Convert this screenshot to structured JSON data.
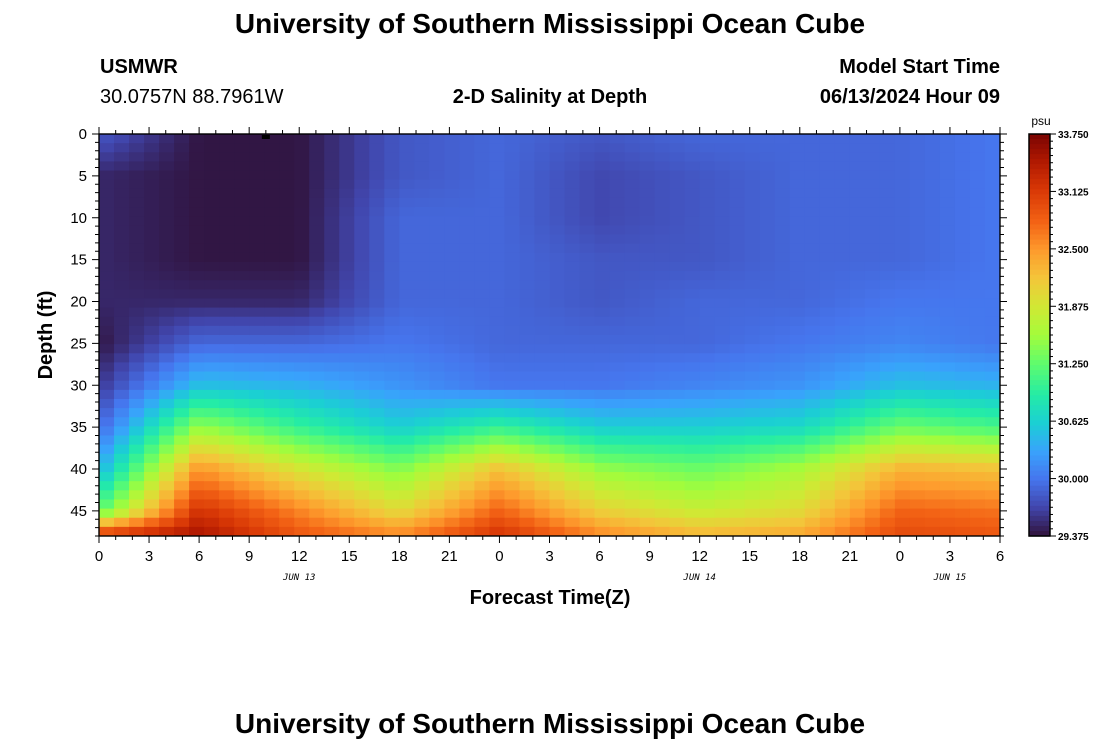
{
  "page": {
    "title": "University of Southern Mississippi Ocean Cube",
    "footer_title": "University of Southern Mississippi Ocean Cube",
    "station": "USMWR",
    "coordinates": "30.0757N  88.7961W",
    "subtitle": "2-D Salinity at Depth",
    "model_label": "Model Start Time",
    "model_time": "06/13/2024 Hour 09"
  },
  "chart_data": {
    "type": "heatmap",
    "title": "2-D Salinity at Depth",
    "xlabel": "Forecast Time(Z)",
    "ylabel": "Depth (ft)",
    "colorbar_unit": "psu",
    "xlim": [
      0,
      54
    ],
    "ylim": [
      0,
      48
    ],
    "y_inverted": true,
    "x_ticks": [
      0,
      3,
      6,
      9,
      12,
      15,
      18,
      21,
      24,
      27,
      30,
      33,
      36,
      39,
      42,
      45,
      48,
      51,
      54
    ],
    "x_tick_labels": [
      "0",
      "3",
      "6",
      "9",
      "12",
      "15",
      "18",
      "21",
      "0",
      "3",
      "6",
      "9",
      "12",
      "15",
      "18",
      "21",
      "0",
      "3",
      "6"
    ],
    "date_labels": [
      {
        "x": 12,
        "label": "JUN 13"
      },
      {
        "x": 36,
        "label": "JUN 14"
      },
      {
        "x": 51,
        "label": "JUN 15"
      }
    ],
    "y_ticks": [
      0,
      5,
      10,
      15,
      20,
      25,
      30,
      35,
      40,
      45
    ],
    "y_tick_labels": [
      "0",
      "5",
      "10",
      "15",
      "20",
      "25",
      "30",
      "35",
      "40",
      "45"
    ],
    "colorbar_range": [
      29.375,
      33.75
    ],
    "colorbar_ticks": [
      "33.750",
      "33.125",
      "32.500",
      "31.875",
      "31.250",
      "30.625",
      "30.000",
      "29.375"
    ],
    "colorbar_tick_values": [
      33.75,
      33.125,
      32.5,
      31.875,
      31.25,
      30.625,
      30.0,
      29.375
    ],
    "grid": false,
    "columns_x": [
      0,
      6,
      12,
      18,
      24,
      30,
      36,
      42,
      48,
      54
    ],
    "rows_depth": [
      0,
      5,
      10,
      15,
      20,
      25,
      30,
      35,
      40,
      45,
      48
    ],
    "values": [
      [
        29.8,
        29.5,
        29.5,
        29.5,
        29.5,
        29.4,
        29.6,
        29.9,
        30.4,
        31.2,
        33.2
      ],
      [
        29.4,
        29.4,
        29.4,
        29.4,
        29.5,
        29.9,
        30.5,
        31.5,
        32.5,
        33.2,
        33.5
      ],
      [
        29.4,
        29.4,
        29.4,
        29.4,
        29.5,
        29.9,
        30.4,
        31.0,
        31.9,
        32.6,
        32.9
      ],
      [
        29.8,
        29.8,
        29.9,
        29.9,
        29.9,
        30.0,
        30.2,
        30.6,
        31.4,
        32.0,
        32.6
      ],
      [
        29.9,
        29.9,
        29.9,
        29.9,
        29.9,
        29.9,
        30.0,
        31.0,
        32.2,
        32.8,
        33.2
      ],
      [
        29.8,
        29.7,
        29.7,
        29.8,
        29.8,
        29.9,
        30.0,
        30.6,
        31.5,
        32.1,
        32.6
      ],
      [
        29.9,
        29.8,
        29.8,
        29.8,
        29.9,
        29.9,
        30.1,
        30.6,
        31.3,
        31.8,
        32.3
      ],
      [
        29.9,
        29.9,
        29.9,
        29.9,
        29.9,
        30.0,
        30.2,
        30.7,
        31.6,
        32.0,
        32.4
      ],
      [
        29.9,
        29.9,
        29.9,
        29.9,
        30.0,
        30.1,
        30.5,
        31.3,
        32.3,
        32.8,
        33.0
      ],
      [
        30.0,
        30.0,
        30.0,
        30.0,
        30.0,
        30.0,
        30.4,
        31.1,
        32.2,
        32.7,
        32.9
      ]
    ],
    "colormap": [
      [
        0.0,
        "#30123b"
      ],
      [
        0.07,
        "#4145ab"
      ],
      [
        0.14,
        "#4675ed"
      ],
      [
        0.21,
        "#39a2fc"
      ],
      [
        0.28,
        "#1bcfd4"
      ],
      [
        0.35,
        "#24eca6"
      ],
      [
        0.43,
        "#61fc6c"
      ],
      [
        0.5,
        "#a4fc3b"
      ],
      [
        0.57,
        "#d1e834"
      ],
      [
        0.64,
        "#f3c63a"
      ],
      [
        0.71,
        "#fe9b2d"
      ],
      [
        0.78,
        "#f36315"
      ],
      [
        0.86,
        "#d93806"
      ],
      [
        0.93,
        "#b11901"
      ],
      [
        1.0,
        "#7a0402"
      ]
    ],
    "marker": {
      "x": 10,
      "depth": 0
    }
  }
}
